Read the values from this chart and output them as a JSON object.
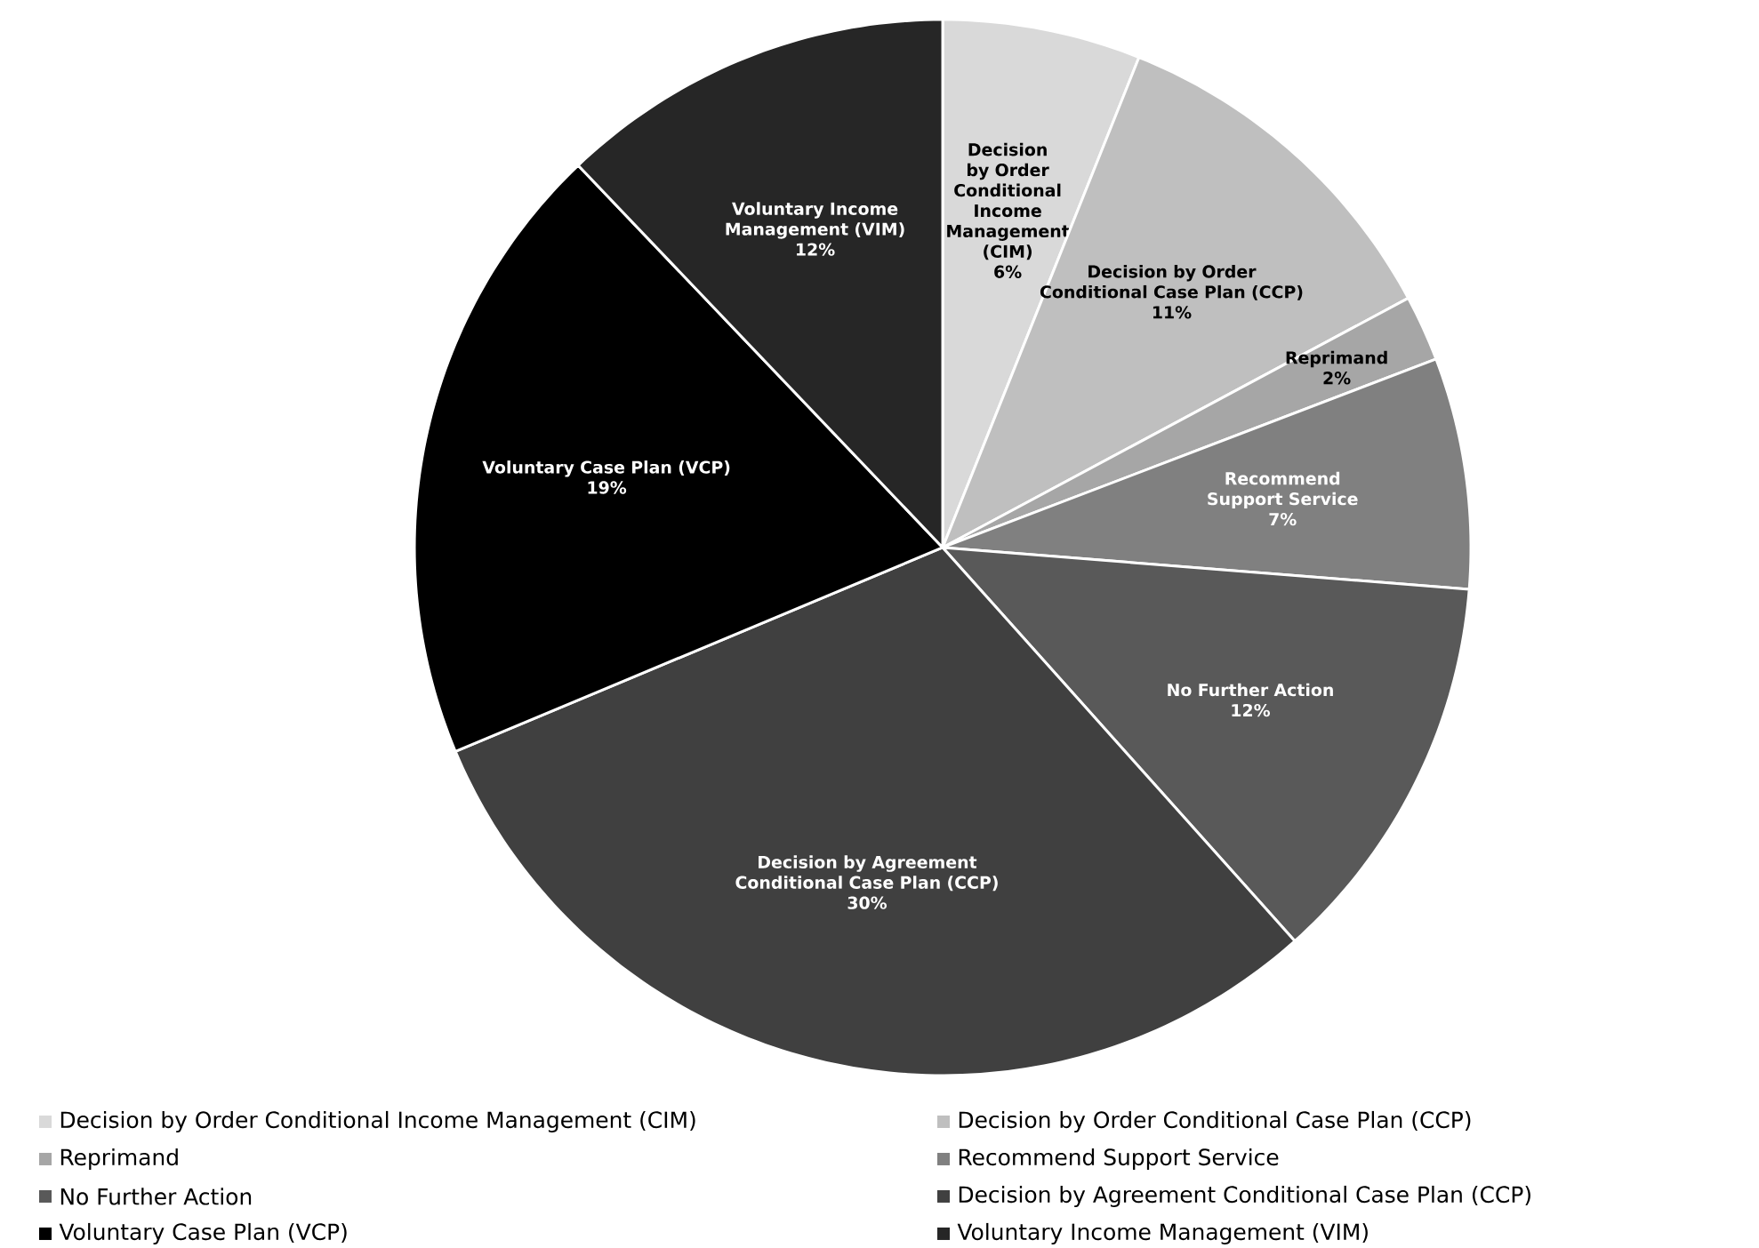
{
  "chart_data": {
    "type": "pie",
    "categories": [
      "Decision by Order Conditional Income Management (CIM)",
      "Decision by Order Conditional Case Plan (CCP)",
      "Reprimand",
      "Recommend Support Service",
      "No Further Action",
      "Decision by Agreement Conditional Case Plan (CCP)",
      "Voluntary Case Plan (VCP)",
      "Voluntary Income Management (VIM)"
    ],
    "values": [
      6,
      11,
      2,
      7,
      12,
      30,
      19,
      12
    ],
    "value_labels": [
      "6%",
      "11%",
      "2%",
      "7%",
      "12%",
      "30%",
      "19%",
      "12%"
    ],
    "colors": [
      "#d9d9d9",
      "#bfbfbf",
      "#a6a6a6",
      "#808080",
      "#595959",
      "#404040",
      "#000000",
      "#262626"
    ],
    "legend": "bottom"
  }
}
